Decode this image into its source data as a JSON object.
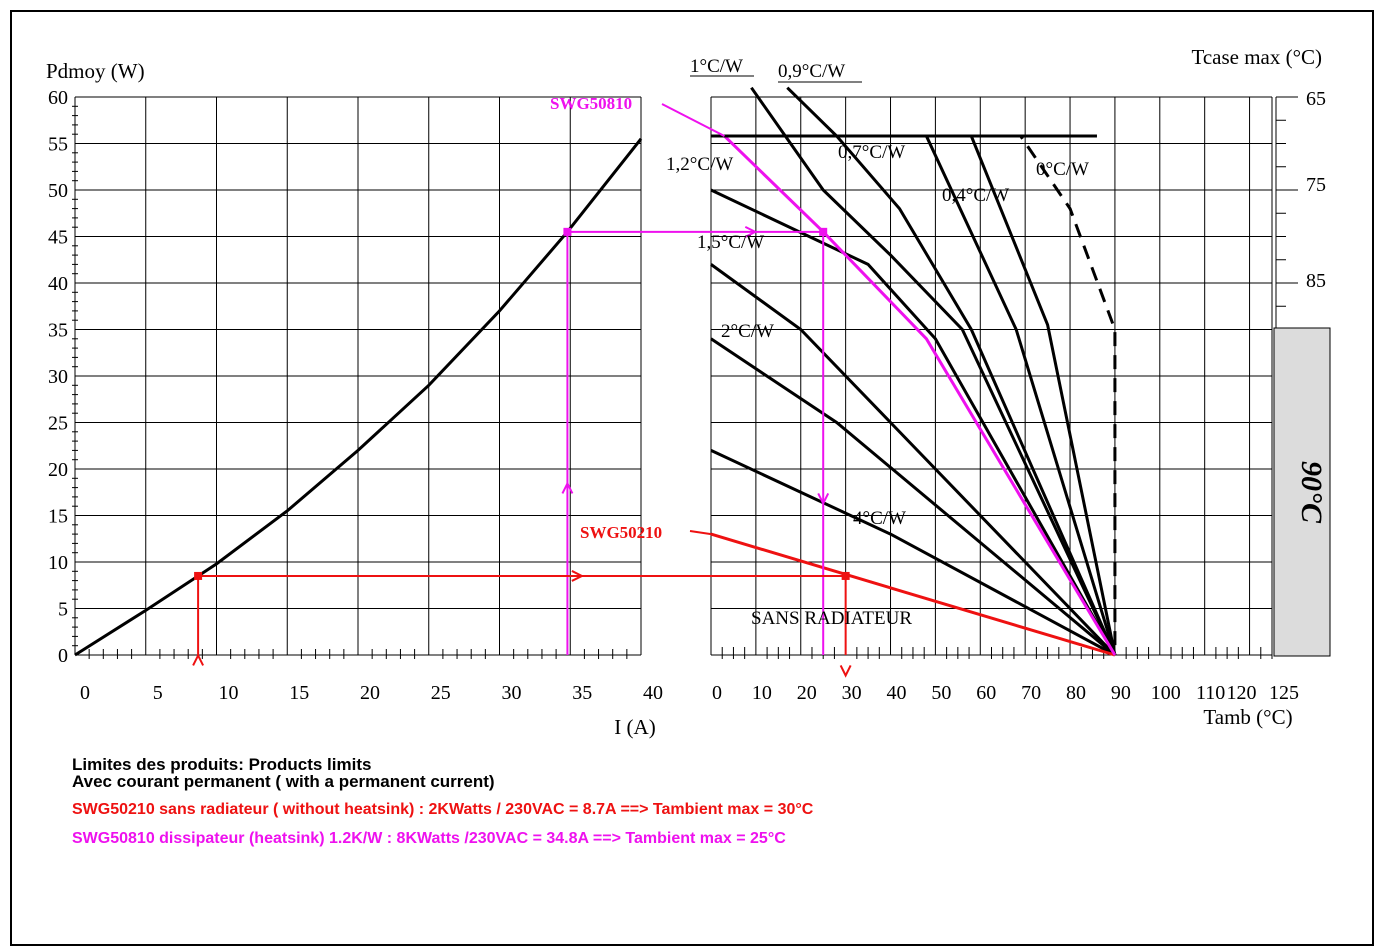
{
  "chart_data": [
    {
      "type": "line",
      "ylabel": "Pdmoy (W)",
      "xlabel": "I (A)",
      "xlim": [
        0,
        40
      ],
      "ylim": [
        0,
        60
      ],
      "x_ticks": [
        "0",
        "5",
        "10",
        "15",
        "20",
        "25",
        "30",
        "35",
        "40"
      ],
      "y_ticks": [
        "0",
        "5",
        "10",
        "15",
        "20",
        "25",
        "30",
        "35",
        "40",
        "45",
        "50",
        "55",
        "60"
      ],
      "grid": true,
      "series": [
        {
          "x": [
            0,
            5,
            8.7,
            10,
            15,
            20,
            25,
            30,
            34.8,
            40
          ],
          "values": [
            0,
            4.8,
            8.5,
            9.8,
            15.5,
            22,
            29,
            37,
            45.5,
            55.5
          ]
        }
      ]
    },
    {
      "type": "line",
      "xlabel": "Tamb (°C)",
      "y2label": "Tcase max (°C)",
      "xlim": [
        0,
        125
      ],
      "ylim": [
        0,
        60
      ],
      "x_ticks": [
        "0",
        "10",
        "20",
        "30",
        "40",
        "50",
        "60",
        "70",
        "80",
        "90",
        "100",
        "110",
        "120",
        "125"
      ],
      "y2_ticks": [
        "65",
        "75",
        "85"
      ],
      "grid": true,
      "series": [
        {
          "name": "0°C/W",
          "x": [
            0,
            69,
            80,
            90,
            90
          ],
          "values": [
            55.8,
            55.8,
            48,
            35,
            0
          ],
          "style": "dashed"
        },
        {
          "name": "0,4°C/W",
          "x": [
            0,
            58,
            75,
            90
          ],
          "values": [
            55.8,
            55.8,
            35.5,
            0
          ]
        },
        {
          "name": "0,7°C/W",
          "x": [
            0,
            48,
            68,
            90
          ],
          "values": [
            55.8,
            55.8,
            35,
            0
          ]
        },
        {
          "name": "0,9°C/W",
          "x": [
            17,
            28,
            42,
            58,
            90
          ],
          "values": [
            61,
            55.8,
            48,
            35,
            0
          ]
        },
        {
          "name": "1°C/W",
          "x": [
            9,
            25,
            40,
            56,
            90
          ],
          "values": [
            61,
            50,
            43,
            35,
            0
          ]
        },
        {
          "name": "1,2°C/W",
          "x": [
            0,
            35,
            50,
            90
          ],
          "values": [
            50,
            42,
            34,
            0
          ]
        },
        {
          "name": "1,5°C/W",
          "x": [
            0,
            20,
            40,
            90
          ],
          "values": [
            42,
            35,
            25,
            0
          ]
        },
        {
          "name": "2°C/W",
          "x": [
            0,
            28,
            90
          ],
          "values": [
            34,
            25,
            0
          ]
        },
        {
          "name": "4°C/W",
          "x": [
            0,
            40,
            90
          ],
          "values": [
            22,
            13,
            0
          ]
        },
        {
          "name": "SANS RADIATEUR",
          "x": [
            0,
            90
          ],
          "values": [
            13,
            0
          ]
        }
      ],
      "annotations": [
        {
          "text": "90°C"
        },
        {
          "text": "SWG50810",
          "color": "#ee11ee"
        },
        {
          "text": "SWG50210",
          "color": "#ee1111"
        }
      ],
      "highlight_paths": [
        {
          "name": "SWG50810",
          "color": "#ee11ee",
          "current_A": 34.8,
          "power_W": 45.5,
          "tamb_max_C": 25
        },
        {
          "name": "SWG50210",
          "color": "#ee1111",
          "current_A": 8.7,
          "power_W": 8.5,
          "tamb_max_C": 30
        }
      ]
    }
  ],
  "labels": {
    "left_ylabel": "Pdmoy (W)",
    "left_xlabel": "I (A)",
    "right_xlabel": "Tamb (°C)",
    "right_ylabel": "Tcase max (°C)",
    "grey_band": "90°C",
    "swg50810": "SWG50810",
    "swg50210": "SWG50210",
    "curve_labels": [
      "1°C/W",
      "0,9°C/W",
      "0,7°C/W",
      "0°C/W",
      "1,2°C/W",
      "0,4°C/W",
      "1,5°C/W",
      "2°C/W",
      "4°C/W",
      "SANS RADIATEUR"
    ]
  },
  "notes": {
    "line1": "Limites des produits: Products limits",
    "line2": "Avec courant permanent ( with a permanent current)",
    "line3": "SWG50210 sans radiateur ( without heatsink) : 2KWatts / 230VAC = 8.7A  ==> Tambient max = 30°C",
    "line4": "SWG50810 dissipateur (heatsink) 1.2K/W : 8KWatts /230VAC = 34.8A ==> Tambient max = 25°C"
  },
  "colors": {
    "red": "#ee1111",
    "magenta": "#ee11ee",
    "grey_band": "#dcdcdc",
    "ink": "#000000"
  }
}
